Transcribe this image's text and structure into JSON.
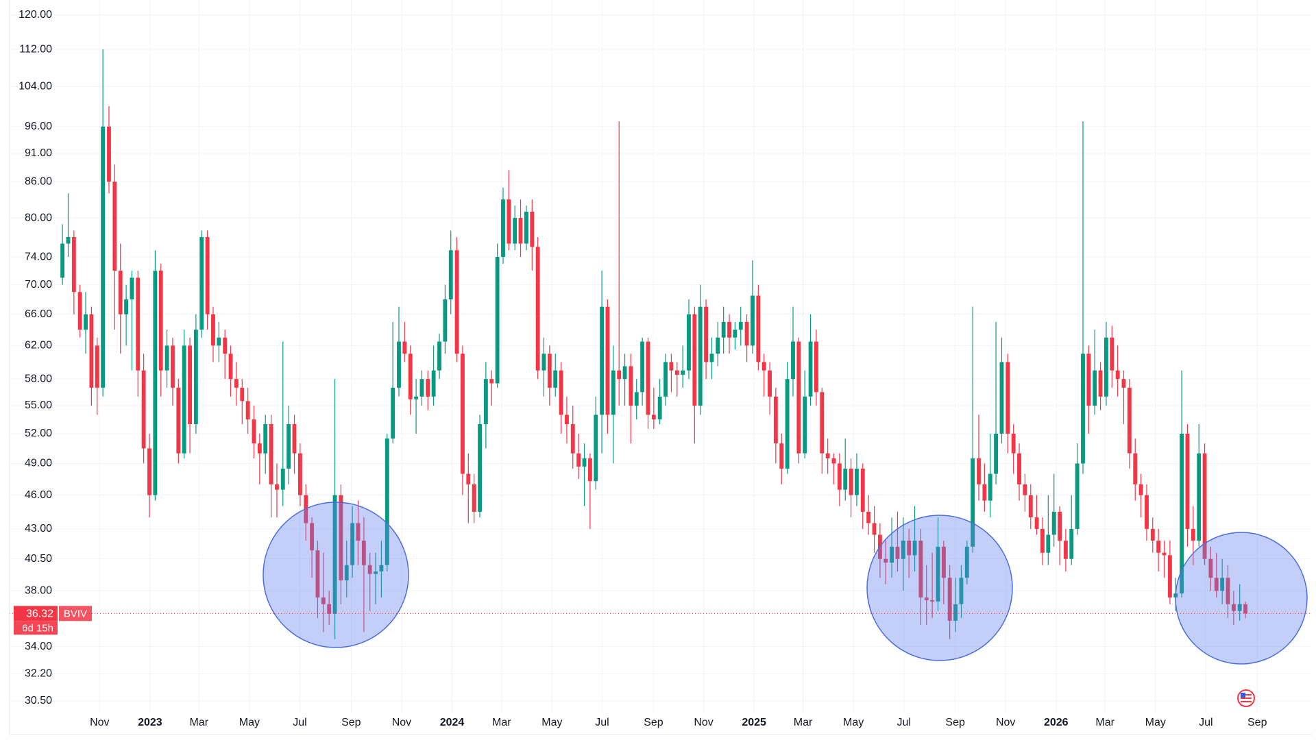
{
  "chart_data": {
    "type": "candlestick",
    "symbol": "BVIV",
    "countdown": "6d 15h",
    "log_scale": true,
    "grid": true,
    "up_color": "#089981",
    "down_color": "#f23645",
    "ylim": [
      29.8,
      123.6
    ],
    "yticks": [
      {
        "value": 120,
        "label": "120.00"
      },
      {
        "value": 112,
        "label": "112.00"
      },
      {
        "value": 104,
        "label": "104.00"
      },
      {
        "value": 96,
        "label": "96.00"
      },
      {
        "value": 91,
        "label": "91.00"
      },
      {
        "value": 86,
        "label": "86.00"
      },
      {
        "value": 80,
        "label": "80.00"
      },
      {
        "value": 74,
        "label": "74.00"
      },
      {
        "value": 70,
        "label": "70.00"
      },
      {
        "value": 66,
        "label": "66.00"
      },
      {
        "value": 62,
        "label": "62.00"
      },
      {
        "value": 58,
        "label": "58.00"
      },
      {
        "value": 55,
        "label": "55.00"
      },
      {
        "value": 52,
        "label": "52.00"
      },
      {
        "value": 49,
        "label": "49.00"
      },
      {
        "value": 46,
        "label": "46.00"
      },
      {
        "value": 43,
        "label": "43.00"
      },
      {
        "value": 40.5,
        "label": "40.50"
      },
      {
        "value": 38,
        "label": "38.00"
      },
      {
        "value": 34,
        "label": "34.00"
      },
      {
        "value": 32.2,
        "label": "32.20"
      },
      {
        "value": 30.5,
        "label": "30.50"
      }
    ],
    "xlim": [
      2022.535,
      2026.847
    ],
    "xticks": [
      {
        "value": 2022.833,
        "label": "Nov"
      },
      2023,
      {
        "value": 2023.162,
        "label": "Mar"
      },
      {
        "value": 2023.329,
        "label": "May"
      },
      {
        "value": 2023.496,
        "label": "Jul"
      },
      {
        "value": 2023.666,
        "label": "Sep"
      },
      {
        "value": 2023.833,
        "label": "Nov"
      },
      2024,
      {
        "value": 2024.164,
        "label": "Mar"
      },
      {
        "value": 2024.331,
        "label": "May"
      },
      {
        "value": 2024.497,
        "label": "Jul"
      },
      {
        "value": 2024.667,
        "label": "Sep"
      },
      {
        "value": 2024.833,
        "label": "Nov"
      },
      2025,
      {
        "value": 2025.162,
        "label": "Mar"
      },
      {
        "value": 2025.329,
        "label": "May"
      },
      {
        "value": 2025.496,
        "label": "Jul"
      },
      {
        "value": 2025.666,
        "label": "Sep"
      },
      {
        "value": 2025.833,
        "label": "Nov"
      },
      2026,
      {
        "value": 2026.162,
        "label": "Mar"
      },
      {
        "value": 2026.329,
        "label": "May"
      },
      {
        "value": 2026.496,
        "label": "Jul"
      },
      {
        "value": 2026.666,
        "label": "Sep"
      }
    ],
    "x": [
      2022.71,
      2022.729,
      2022.748,
      2022.768,
      2022.787,
      2022.806,
      2022.825,
      2022.844,
      2022.864,
      2022.883,
      2022.902,
      2022.921,
      2022.94,
      2022.96,
      2022.979,
      2022.998,
      2023.017,
      2023.036,
      2023.056,
      2023.075,
      2023.094,
      2023.113,
      2023.132,
      2023.152,
      2023.171,
      2023.19,
      2023.209,
      2023.228,
      2023.248,
      2023.267,
      2023.286,
      2023.305,
      2023.324,
      2023.344,
      2023.363,
      2023.382,
      2023.401,
      2023.42,
      2023.44,
      2023.459,
      2023.478,
      2023.497,
      2023.516,
      2023.536,
      2023.555,
      2023.574,
      2023.593,
      2023.612,
      2023.632,
      2023.651,
      2023.67,
      2023.689,
      2023.708,
      2023.728,
      2023.747,
      2023.766,
      2023.785,
      2023.804,
      2023.824,
      2023.843,
      2023.862,
      2023.881,
      2023.9,
      2023.92,
      2023.939,
      2023.958,
      2023.977,
      2023.996,
      2024.016,
      2024.035,
      2024.054,
      2024.073,
      2024.092,
      2024.112,
      2024.131,
      2024.15,
      2024.169,
      2024.188,
      2024.208,
      2024.227,
      2024.246,
      2024.265,
      2024.284,
      2024.304,
      2024.323,
      2024.342,
      2024.361,
      2024.38,
      2024.4,
      2024.419,
      2024.438,
      2024.457,
      2024.476,
      2024.496,
      2024.515,
      2024.534,
      2024.553,
      2024.572,
      2024.592,
      2024.611,
      2024.63,
      2024.649,
      2024.668,
      2024.688,
      2024.707,
      2024.726,
      2024.745,
      2024.764,
      2024.784,
      2024.803,
      2024.822,
      2024.841,
      2024.86,
      2024.88,
      2024.899,
      2024.918,
      2024.937,
      2024.956,
      2024.976,
      2024.995,
      2025.014,
      2025.033,
      2025.052,
      2025.072,
      2025.091,
      2025.11,
      2025.129,
      2025.148,
      2025.168,
      2025.187,
      2025.206,
      2025.225,
      2025.244,
      2025.264,
      2025.283,
      2025.302,
      2025.321,
      2025.34,
      2025.36,
      2025.379,
      2025.398,
      2025.417,
      2025.436,
      2025.456,
      2025.475,
      2025.494,
      2025.513,
      2025.532,
      2025.552,
      2025.571,
      2025.59,
      2025.609,
      2025.628,
      2025.648,
      2025.667,
      2025.686,
      2025.705,
      2025.724,
      2025.744,
      2025.763,
      2025.782,
      2025.801,
      2025.82,
      2025.84,
      2025.859,
      2025.878,
      2025.897,
      2025.916,
      2025.936,
      2025.955,
      2025.974,
      2025.993,
      2026.012,
      2026.032,
      2026.051,
      2026.07,
      2026.089,
      2026.108,
      2026.128,
      2026.147,
      2026.166,
      2026.185,
      2026.204,
      2026.224,
      2026.243,
      2026.262,
      2026.281,
      2026.3,
      2026.32,
      2026.339,
      2026.358,
      2026.377,
      2026.396,
      2026.416,
      2026.435,
      2026.454,
      2026.473,
      2026.492,
      2026.512,
      2026.531,
      2026.55,
      2026.569,
      2026.588,
      2026.608,
      2026.627
    ],
    "open": [
      71,
      76,
      77,
      69,
      64,
      66,
      62,
      57,
      96,
      86,
      72,
      66,
      68,
      71,
      59,
      50.5,
      46,
      72,
      59,
      62,
      57,
      50,
      62,
      53,
      64,
      77,
      66,
      62,
      63,
      61,
      58,
      57,
      55.5,
      53.5,
      51,
      50,
      53,
      47,
      46.5,
      48.5,
      53,
      50,
      46,
      43.5,
      41.2,
      37.5,
      37,
      36.3,
      46,
      38.8,
      40,
      43.5,
      42,
      40,
      39.3,
      39.5,
      40,
      51.5,
      57,
      62.5,
      61,
      55.7,
      56,
      58,
      56,
      59,
      62.5,
      68,
      75,
      61,
      48,
      47,
      44.5,
      53,
      58,
      57.5,
      74,
      83,
      76,
      80,
      76,
      81,
      75.5,
      59,
      61,
      57,
      59,
      54,
      53,
      50,
      48.7,
      49.5,
      47.3,
      54,
      67,
      54,
      59,
      58,
      59.5,
      55,
      56.5,
      62.5,
      54,
      53.5,
      56,
      60,
      59,
      58.5,
      59,
      66,
      55,
      67,
      60,
      61,
      63,
      65,
      63,
      64,
      65,
      62,
      68.5,
      60,
      59,
      56,
      51,
      48.5,
      58,
      62.5,
      50,
      56,
      62.5,
      56.5,
      50,
      49.5,
      49,
      46.5,
      48.5,
      46,
      48.5,
      44.5,
      43.5,
      42.5,
      40.5,
      40.2,
      41.5,
      40.5,
      42,
      40.8,
      42,
      37.5,
      37.3,
      37.2,
      41.5,
      39,
      35.8,
      37,
      39,
      41.5,
      49.5,
      47,
      45.5,
      48,
      52,
      60,
      52,
      50,
      47,
      46,
      44,
      43,
      41,
      42.5,
      44.5,
      42,
      40.5,
      43,
      49,
      61,
      55,
      59,
      56,
      63,
      59,
      58,
      57,
      50,
      47,
      46,
      43,
      42,
      41,
      40.8,
      37.5,
      37.8,
      52,
      43,
      42,
      50,
      40.5,
      39,
      38,
      39,
      37,
      36.5,
      37
    ],
    "high": [
      79,
      84,
      78,
      70,
      69,
      67,
      63,
      112,
      100,
      89,
      76,
      70,
      72,
      72,
      61,
      52,
      75,
      73,
      64,
      63,
      58,
      64,
      63,
      66,
      78,
      78,
      67,
      65,
      64,
      62,
      60,
      58,
      57,
      55,
      52,
      54,
      54,
      49,
      62.5,
      55,
      54,
      51,
      47,
      44,
      42,
      41,
      38,
      58,
      47,
      42,
      45,
      45.5,
      44,
      41,
      41,
      42,
      52,
      65,
      67,
      65,
      62,
      58,
      59,
      59,
      62,
      63.5,
      70,
      78,
      77,
      62,
      50,
      48,
      54,
      60,
      59,
      76,
      85,
      88,
      82,
      83,
      82,
      83,
      77,
      63,
      62,
      61,
      60,
      56,
      55,
      52,
      51,
      50,
      56,
      72,
      68,
      62,
      97,
      61,
      61,
      58,
      63,
      63,
      57,
      58,
      61,
      61,
      60,
      62,
      68,
      67,
      70,
      68,
      63,
      65,
      67,
      66,
      65,
      67,
      66,
      73.5,
      70,
      61,
      60,
      57,
      52,
      60,
      67,
      63,
      59,
      66,
      64,
      57,
      51.5,
      50,
      50,
      51.5,
      49.5,
      50,
      49,
      46,
      45,
      43.5,
      42,
      44,
      44.5,
      44,
      43,
      45,
      43,
      40,
      41,
      44,
      42,
      40,
      39,
      40,
      42,
      67,
      54,
      49,
      52,
      65,
      63,
      61,
      53,
      51,
      48,
      47,
      46,
      44,
      46,
      48,
      45,
      43,
      46,
      51,
      97,
      62,
      64,
      60,
      65,
      64.5,
      62,
      59,
      58,
      51.5,
      48,
      47,
      44,
      43,
      42,
      42,
      39,
      59,
      53,
      45,
      53,
      51,
      41.5,
      41,
      40.5,
      40,
      38,
      38.5,
      37.2
    ],
    "low": [
      70,
      74,
      66,
      63,
      61,
      55,
      54,
      56,
      84,
      64,
      61,
      62,
      59,
      56,
      49,
      44,
      45.5,
      56,
      57,
      55,
      49,
      49.5,
      50,
      52,
      63,
      64,
      60,
      60,
      58,
      56,
      55,
      53,
      52,
      49.5,
      47,
      48,
      44,
      44,
      45,
      47,
      48,
      45,
      42,
      39,
      36,
      35,
      35.5,
      34.5,
      37,
      37.5,
      39,
      40,
      35,
      36.5,
      37,
      37.5,
      39.5,
      51,
      56,
      60,
      54,
      52,
      55,
      54.5,
      55,
      58,
      61,
      66,
      60,
      46,
      43.5,
      43.5,
      44,
      50.5,
      55,
      57,
      73,
      75,
      75,
      74,
      75,
      72,
      58,
      56,
      55,
      56,
      52,
      51,
      48.5,
      47.5,
      45,
      43,
      46.5,
      50,
      52,
      49,
      55,
      55,
      51,
      53.5,
      55,
      52.5,
      52.5,
      53,
      55,
      56.5,
      56,
      57,
      58,
      51,
      54,
      58,
      58,
      59.5,
      61,
      61,
      61.5,
      62,
      60,
      61,
      59,
      56,
      54,
      49,
      47,
      48,
      56,
      49,
      49.5,
      55,
      55,
      48,
      48,
      47,
      45,
      45.5,
      44,
      45,
      43,
      42.5,
      41,
      39,
      38.5,
      39,
      39.5,
      38,
      39,
      39.5,
      35.5,
      35.5,
      36,
      36.5,
      37,
      34.5,
      35,
      36,
      38.5,
      41,
      45.5,
      44.5,
      44,
      47,
      51,
      50,
      48,
      45.5,
      44.5,
      43,
      42.5,
      40,
      40,
      41.5,
      40,
      39.5,
      40,
      42.5,
      48,
      52,
      54,
      54.5,
      55,
      57,
      56,
      53,
      48.5,
      45.5,
      44,
      42,
      41,
      39.5,
      39,
      37,
      36.5,
      37.5,
      41.5,
      40,
      41.5,
      40,
      38,
      37.5,
      37,
      36,
      35.5,
      35.8,
      36
    ],
    "close": [
      76,
      77,
      69,
      64,
      66,
      57,
      57,
      96,
      86,
      72,
      66,
      68,
      71,
      59,
      50.5,
      46,
      72,
      59,
      62,
      57,
      50,
      62,
      53,
      64,
      77,
      66,
      62,
      63,
      61,
      58,
      57,
      55.5,
      53.5,
      51,
      50,
      53,
      47,
      46.5,
      48.5,
      53,
      50,
      46,
      43.5,
      41.2,
      37.5,
      37,
      36.3,
      46,
      38.8,
      40,
      43.5,
      42,
      40,
      39.3,
      39.5,
      40,
      51.5,
      57,
      62.5,
      61,
      55.7,
      56,
      58,
      56,
      59,
      62.5,
      68,
      75,
      61,
      48,
      47,
      44.5,
      53,
      58,
      57.5,
      74,
      83,
      76,
      80,
      76,
      81,
      75.5,
      59,
      61,
      57,
      59,
      54,
      53,
      50,
      48.7,
      49.5,
      47.3,
      54,
      67,
      54,
      59,
      58,
      59.5,
      55,
      56.5,
      62.5,
      54,
      53.5,
      56,
      60,
      59,
      58.5,
      59,
      66,
      55,
      67,
      60,
      61,
      63,
      65,
      63,
      64,
      65,
      62,
      68.5,
      60,
      59,
      56,
      51,
      48.5,
      58,
      62.5,
      50,
      56,
      62.5,
      56.5,
      50,
      49.5,
      49,
      46.5,
      48.5,
      46,
      48.5,
      44.5,
      43.5,
      42.5,
      40.5,
      40.2,
      41.5,
      40.5,
      42,
      40.8,
      42,
      37.5,
      37.3,
      37.2,
      41.5,
      39,
      35.8,
      37,
      39,
      41.5,
      49.5,
      47,
      45.5,
      48,
      52,
      60,
      52,
      50,
      47,
      46,
      44,
      43,
      41,
      42.5,
      44.5,
      42,
      40.5,
      43,
      49,
      61,
      55,
      59,
      56,
      63,
      59,
      58,
      57,
      50,
      47,
      46,
      43,
      42,
      41,
      40.8,
      37.5,
      37.8,
      52,
      43,
      42,
      50,
      40.5,
      39,
      38,
      39,
      37,
      36.5,
      37,
      36.32
    ]
  }
}
